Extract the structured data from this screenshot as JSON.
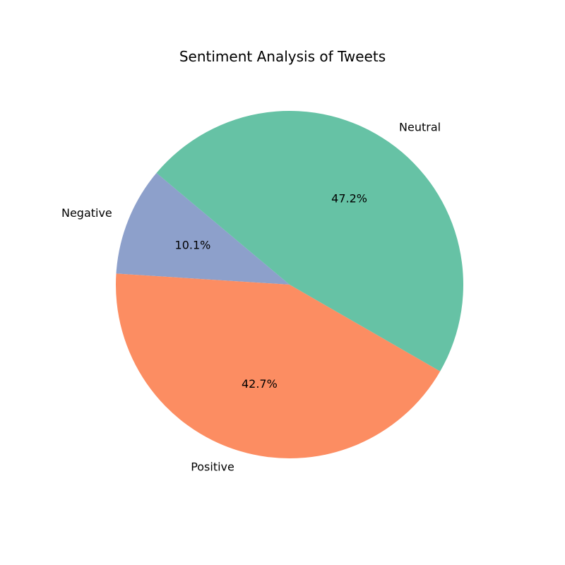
{
  "chart_data": {
    "type": "pie",
    "title": "Sentiment Analysis of Tweets",
    "slices": [
      {
        "name": "Negative",
        "value": 10.1,
        "label": "10.1%",
        "color": "#8da0cb"
      },
      {
        "name": "Positive",
        "value": 42.7,
        "label": "42.7%",
        "color": "#fc8d62"
      },
      {
        "name": "Neutral",
        "value": 47.2,
        "label": "47.2%",
        "color": "#66c2a5"
      }
    ],
    "legend": "none"
  }
}
